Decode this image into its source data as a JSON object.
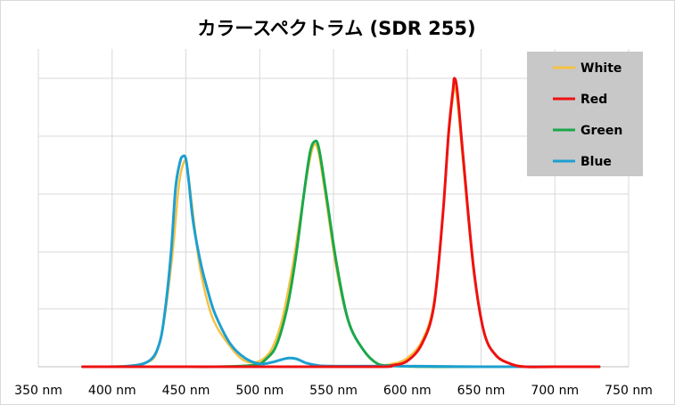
{
  "chart_data": {
    "type": "line",
    "title": "カラースペクトラム (SDR 255)",
    "xlabel": "",
    "ylabel": "",
    "xlim": [
      350,
      750
    ],
    "ylim": [
      0,
      1
    ],
    "x_tick_labels": [
      "350 nm",
      "400 nm",
      "450 nm",
      "500 nm",
      "550 nm",
      "600 nm",
      "650 nm",
      "700 nm",
      "750 nm"
    ],
    "x_ticks": [
      350,
      400,
      450,
      500,
      550,
      600,
      650,
      700,
      750
    ],
    "grid": true,
    "legend_position": "top-right",
    "series": [
      {
        "name": "White",
        "color": "#f5c242",
        "x": [
          380,
          420,
          432,
          440,
          445,
          448,
          450,
          452,
          456,
          460,
          468,
          480,
          490,
          500,
          508,
          515,
          522,
          530,
          534,
          537,
          540,
          545,
          552,
          560,
          570,
          580,
          590,
          600,
          610,
          618,
          624,
          628,
          631,
          632,
          634,
          638,
          645,
          652,
          660,
          670,
          680,
          700,
          730
        ],
        "y": [
          0,
          0.01,
          0.08,
          0.35,
          0.62,
          0.7,
          0.71,
          0.65,
          0.48,
          0.33,
          0.17,
          0.07,
          0.02,
          0.02,
          0.06,
          0.16,
          0.34,
          0.6,
          0.72,
          0.77,
          0.74,
          0.58,
          0.34,
          0.16,
          0.06,
          0.01,
          0.01,
          0.03,
          0.09,
          0.22,
          0.52,
          0.8,
          0.94,
          0.97,
          0.92,
          0.7,
          0.33,
          0.12,
          0.04,
          0.01,
          0.0,
          0.0,
          0.0
        ]
      },
      {
        "name": "Red",
        "color": "#ee1111",
        "x": [
          380,
          500,
          580,
          590,
          600,
          610,
          618,
          624,
          628,
          631,
          632,
          634,
          638,
          645,
          652,
          660,
          670,
          680,
          700,
          730
        ],
        "y": [
          0,
          0,
          0,
          0.005,
          0.02,
          0.08,
          0.21,
          0.52,
          0.81,
          0.96,
          1.0,
          0.95,
          0.72,
          0.34,
          0.12,
          0.04,
          0.01,
          0.0,
          0.0,
          0.0
        ]
      },
      {
        "name": "Green",
        "color": "#1aa84b",
        "x": [
          380,
          440,
          470,
          490,
          500,
          505,
          510,
          515,
          520,
          525,
          530,
          534,
          537,
          540,
          545,
          552,
          560,
          570,
          580,
          590,
          600,
          620,
          650,
          730
        ],
        "y": [
          0,
          0.0,
          0.0,
          0.003,
          0.01,
          0.03,
          0.06,
          0.13,
          0.24,
          0.4,
          0.6,
          0.74,
          0.78,
          0.76,
          0.6,
          0.36,
          0.16,
          0.06,
          0.01,
          0.004,
          0.001,
          0.0,
          0.0,
          0.0
        ]
      },
      {
        "name": "Blue",
        "color": "#1e9fd0",
        "x": [
          380,
          410,
          425,
          432,
          436,
          440,
          443,
          446,
          448,
          450,
          452,
          455,
          460,
          465,
          470,
          480,
          490,
          500,
          508,
          515,
          520,
          525,
          532,
          540,
          550,
          560,
          600,
          650,
          730
        ],
        "y": [
          0,
          0.002,
          0.02,
          0.08,
          0.2,
          0.4,
          0.62,
          0.71,
          0.73,
          0.72,
          0.64,
          0.5,
          0.36,
          0.26,
          0.18,
          0.08,
          0.03,
          0.01,
          0.015,
          0.025,
          0.03,
          0.027,
          0.012,
          0.004,
          0.002,
          0.002,
          0.002,
          0.0,
          0.0
        ]
      }
    ]
  }
}
